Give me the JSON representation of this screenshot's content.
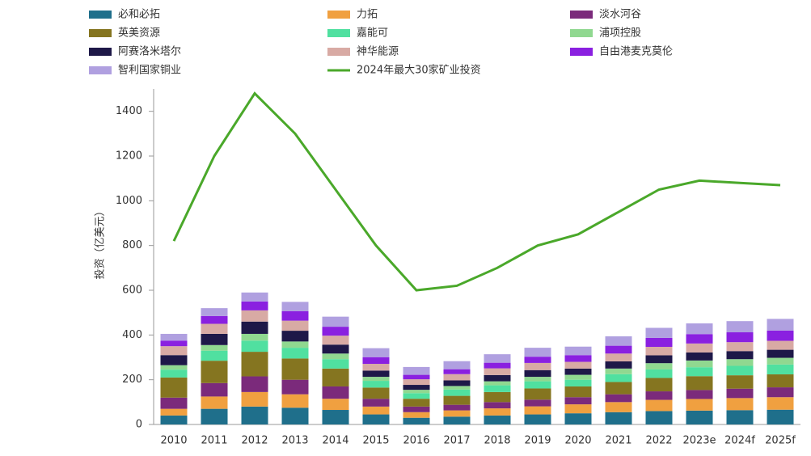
{
  "chart_data": {
    "type": "stacked-bar-line",
    "y_label": "投资（亿美元）",
    "categories": [
      "2010",
      "2011",
      "2012",
      "2013",
      "2014",
      "2015",
      "2016",
      "2017",
      "2018",
      "2019",
      "2020",
      "2021",
      "2022",
      "2023e",
      "2024f",
      "2025f"
    ],
    "ylim": [
      0,
      1500
    ],
    "yticks": [
      0,
      200,
      400,
      600,
      800,
      1000,
      1200,
      1400
    ],
    "series": [
      {
        "name": "必和必拓",
        "color": "#1f6f8b",
        "values": [
          40,
          70,
          80,
          75,
          65,
          45,
          30,
          35,
          40,
          45,
          50,
          55,
          60,
          62,
          64,
          66
        ]
      },
      {
        "name": "力拓",
        "color": "#f0a040",
        "values": [
          30,
          55,
          65,
          60,
          50,
          35,
          25,
          28,
          32,
          36,
          40,
          45,
          50,
          52,
          54,
          56
        ]
      },
      {
        "name": "淡水河谷",
        "color": "#7b2a7b",
        "values": [
          50,
          60,
          70,
          65,
          55,
          35,
          25,
          25,
          28,
          30,
          32,
          35,
          38,
          40,
          42,
          44
        ]
      },
      {
        "name": "英美资源",
        "color": "#857520",
        "values": [
          90,
          100,
          110,
          95,
          80,
          50,
          35,
          40,
          45,
          50,
          48,
          55,
          60,
          62,
          60,
          58
        ]
      },
      {
        "name": "嘉能可",
        "color": "#50e0a0",
        "values": [
          35,
          45,
          50,
          48,
          42,
          30,
          25,
          28,
          30,
          32,
          30,
          35,
          38,
          40,
          42,
          44
        ]
      },
      {
        "name": "浦项控股",
        "color": "#90d890",
        "values": [
          20,
          25,
          30,
          28,
          25,
          18,
          15,
          16,
          18,
          20,
          22,
          25,
          28,
          30,
          30,
          30
        ]
      },
      {
        "name": "阿赛洛米塔尔",
        "color": "#1e1848",
        "values": [
          45,
          50,
          55,
          48,
          40,
          28,
          22,
          25,
          28,
          30,
          28,
          32,
          35,
          36,
          36,
          36
        ]
      },
      {
        "name": "神华能源",
        "color": "#d8aaa4",
        "values": [
          40,
          45,
          50,
          45,
          40,
          30,
          25,
          28,
          30,
          32,
          30,
          35,
          38,
          40,
          40,
          40
        ]
      },
      {
        "name": "自由港麦克莫伦",
        "color": "#8a20e0",
        "values": [
          25,
          35,
          40,
          42,
          40,
          30,
          20,
          22,
          25,
          28,
          30,
          35,
          40,
          42,
          44,
          46
        ]
      },
      {
        "name": "智利国家铜业",
        "color": "#b0a0e0",
        "values": [
          30,
          35,
          40,
          42,
          45,
          40,
          35,
          36,
          38,
          40,
          38,
          42,
          45,
          48,
          50,
          52
        ]
      }
    ],
    "line": {
      "name": "2024年最大30家矿业投资",
      "color": "#4aa82a",
      "values": [
        820,
        1200,
        1480,
        1300,
        1050,
        800,
        600,
        620,
        700,
        800,
        850,
        950,
        1050,
        1090,
        1080,
        1070
      ]
    }
  }
}
